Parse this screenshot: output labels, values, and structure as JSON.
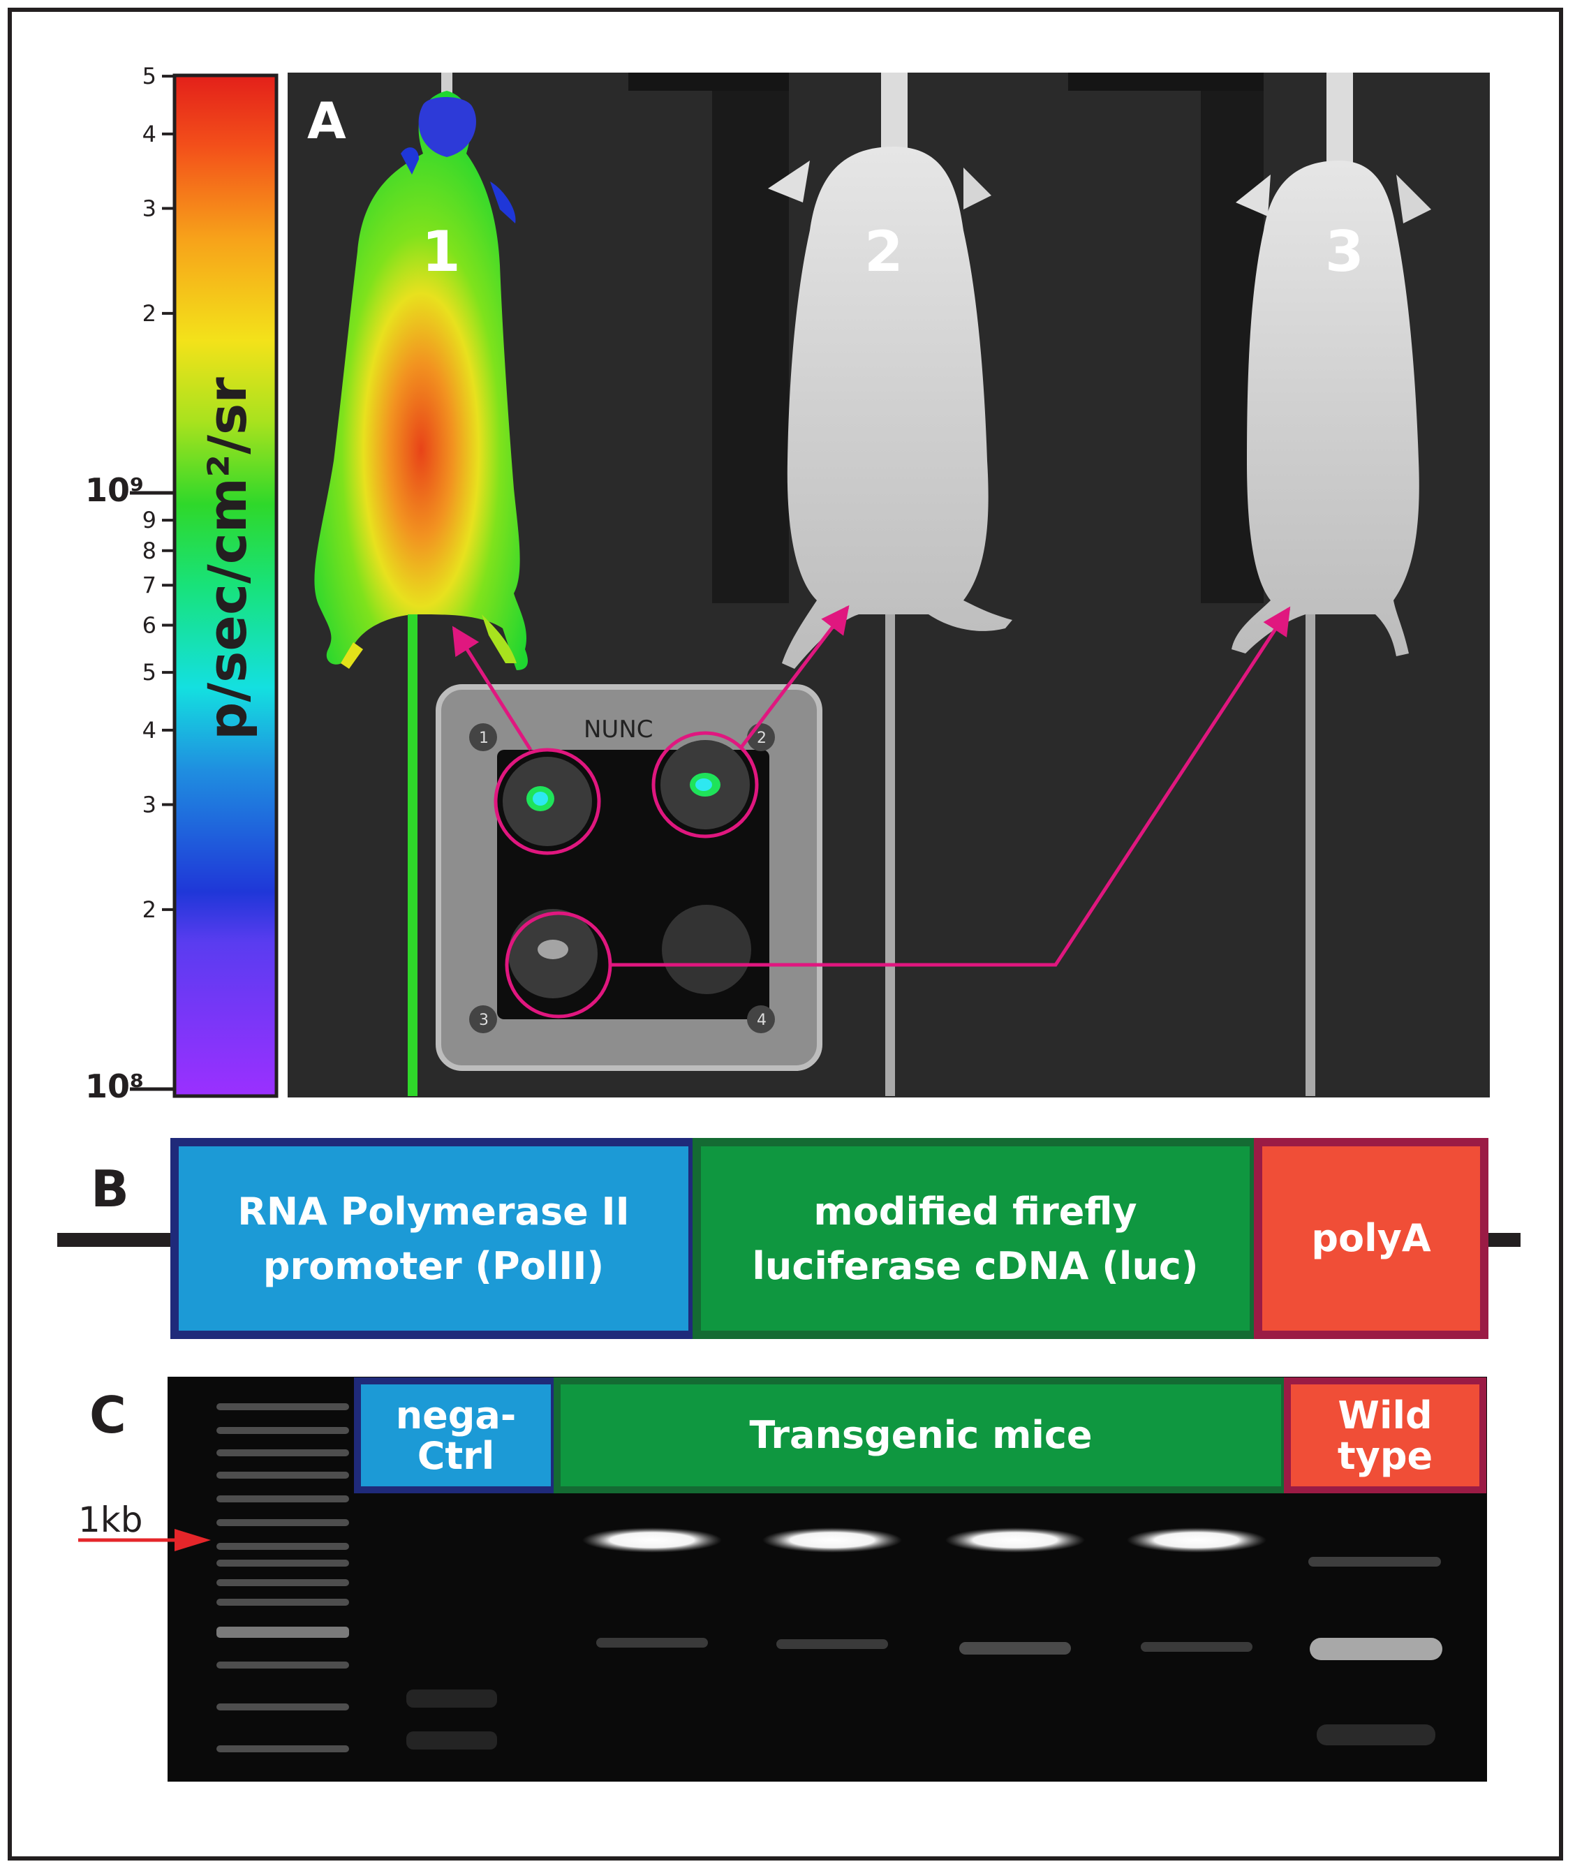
{
  "panels": {
    "a": {
      "letter": "A"
    },
    "b": {
      "letter": "B"
    },
    "c": {
      "letter": "C"
    }
  },
  "colorbar": {
    "unit_label": "p/sec/cm²/sr",
    "major_ticks": {
      "upper": "10⁹",
      "lower": "10⁸"
    },
    "minor_ticks": [
      "5",
      "4",
      "3",
      "2",
      "9",
      "8",
      "7",
      "6",
      "5",
      "4",
      "3",
      "2"
    ]
  },
  "mice": [
    "1",
    "2",
    "3"
  ],
  "plate": {
    "brand": "NUNC",
    "well_numbers": [
      "1",
      "2",
      "3",
      "4"
    ]
  },
  "construct": {
    "segments": [
      {
        "line1": "RNA Polymerase II",
        "line2": "promoter (PolII)",
        "color": "#1c9ad6",
        "border": "#1f2a7a"
      },
      {
        "line1": "modified firefly",
        "line2": "luciferase cDNA (luc)",
        "color": "#0f9740",
        "border": "#146b33"
      },
      {
        "line1": "polyA",
        "line2": "",
        "color": "#f04e37",
        "border": "#9b1b45"
      }
    ]
  },
  "gel": {
    "marker_label": "1kb",
    "lane_groups": [
      {
        "line1": "nega-",
        "line2": "Ctrl",
        "color": "#1c9ad6",
        "border": "#1f2a7a"
      },
      {
        "line1": "Transgenic mice",
        "line2": "",
        "color": "#0f9740",
        "border": "#146b33"
      },
      {
        "line1": "Wild",
        "line2": "type",
        "color": "#f04e37",
        "border": "#9b1b45"
      }
    ]
  },
  "colors": {
    "arrow_magenta": "#e0177f",
    "marker_arrow_red": "#e5262a",
    "frame": "#231f20"
  }
}
